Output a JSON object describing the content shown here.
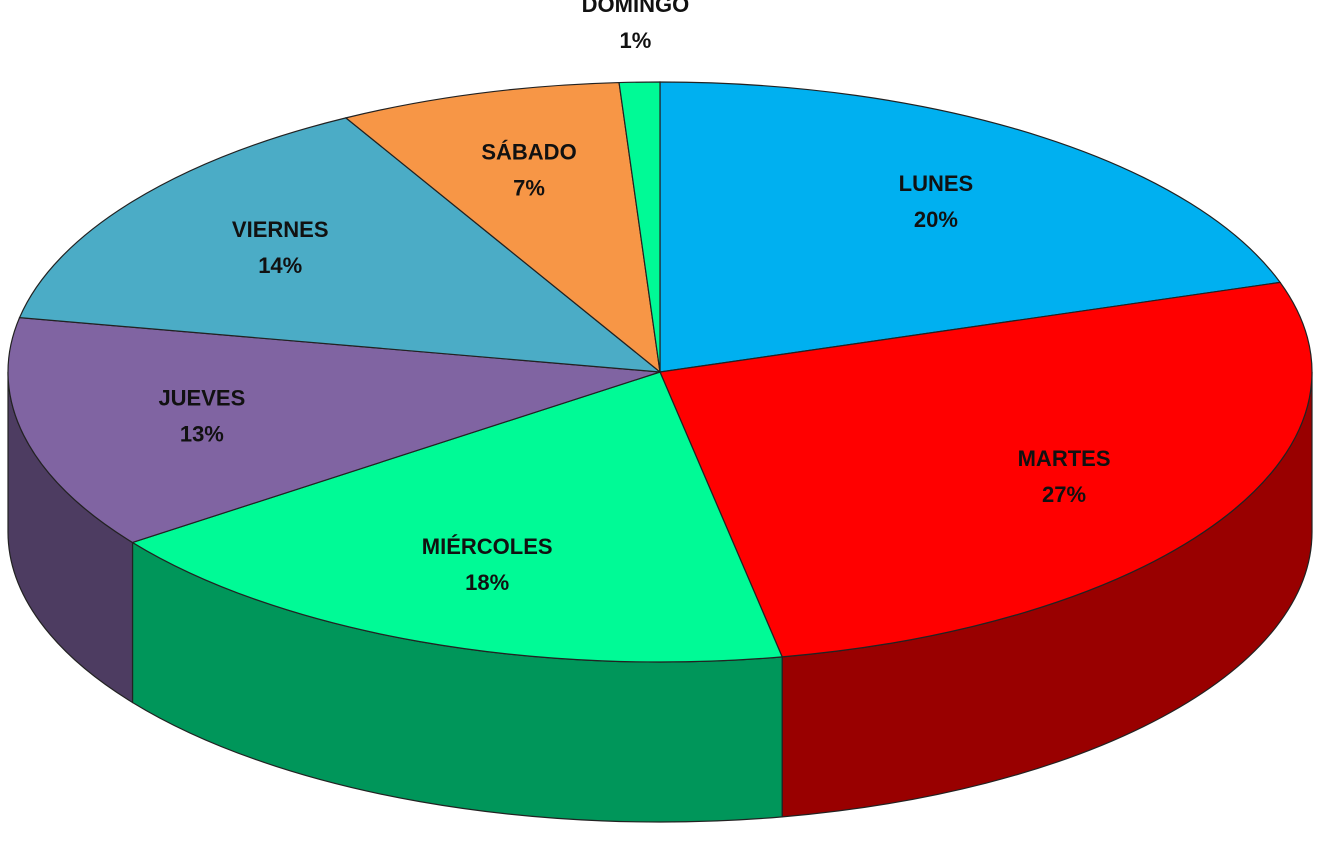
{
  "chart_data": {
    "type": "pie",
    "categories": [
      "LUNES",
      "MARTES",
      "MIÉRCOLES",
      "JUEVES",
      "VIERNES",
      "SÁBADO",
      "DOMINGO"
    ],
    "values": [
      20,
      27,
      18,
      13,
      14,
      7,
      1
    ],
    "value_labels": [
      "20%",
      "27%",
      "18%",
      "13%",
      "14%",
      "7%",
      "1%"
    ],
    "colors": [
      "#00b0f0",
      "#ff0000",
      "#00fa96",
      "#8064a2",
      "#4bacc6",
      "#f79646",
      "#00fa96"
    ]
  }
}
